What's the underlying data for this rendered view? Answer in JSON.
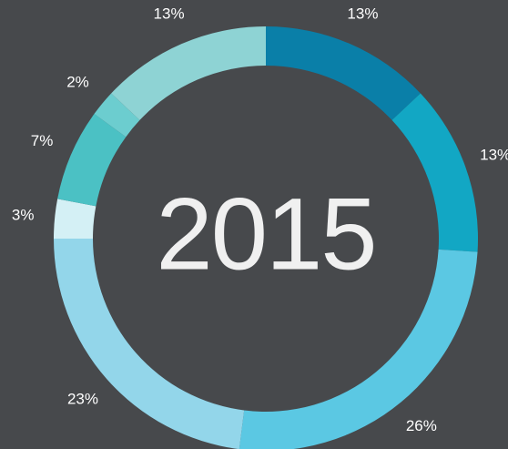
{
  "chart_data": {
    "type": "donut",
    "title": "2015",
    "values": [
      13,
      13,
      26,
      23,
      3,
      7,
      2,
      13
    ],
    "value_labels": [
      "13%",
      "13%",
      "26%",
      "23%",
      "3%",
      "7%",
      "2%",
      "13%"
    ],
    "colors": [
      "#0a7fa8",
      "#12a7c4",
      "#5bc8e3",
      "#93d6ea",
      "#d4f0f5",
      "#4bc1c4",
      "#6ccdcf",
      "#8ed3d4"
    ]
  }
}
